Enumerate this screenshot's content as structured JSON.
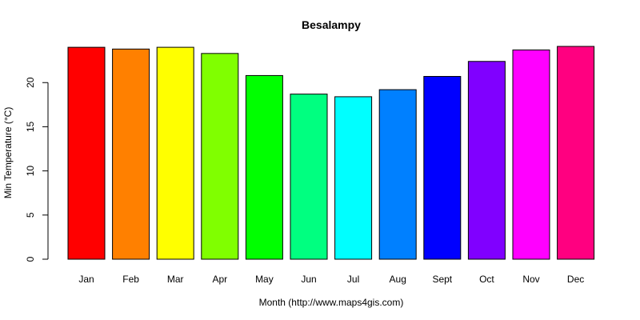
{
  "chart_data": {
    "type": "bar",
    "title": "Besalampy",
    "xlabel": "Month (http://www.maps4gis.com)",
    "ylabel": "Min Temperature (°C)",
    "categories": [
      "Jan",
      "Feb",
      "Mar",
      "Apr",
      "May",
      "Jun",
      "Jul",
      "Aug",
      "Sept",
      "Oct",
      "Nov",
      "Dec"
    ],
    "values": [
      24.0,
      23.8,
      24.0,
      23.3,
      20.8,
      18.7,
      18.4,
      19.2,
      20.7,
      22.4,
      23.7,
      24.1
    ],
    "colors": [
      "#FF0000",
      "#FF8000",
      "#FFFF00",
      "#80FF00",
      "#00FF00",
      "#00FF80",
      "#00FFFF",
      "#0080FF",
      "#0000FF",
      "#8000FF",
      "#FF00FF",
      "#FF0080"
    ],
    "ylim": [
      0,
      24.1
    ],
    "yticks": [
      0,
      5,
      10,
      15,
      20
    ],
    "grid": false,
    "legend": "none"
  }
}
